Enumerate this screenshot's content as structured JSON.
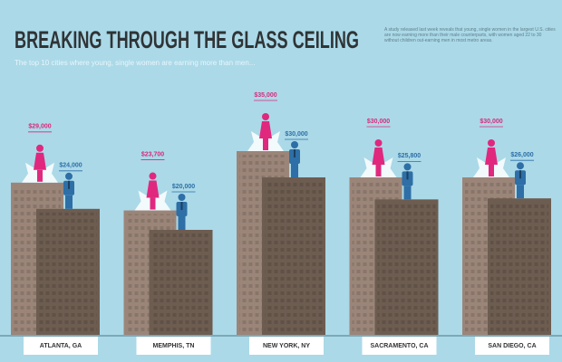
{
  "chart_data": {
    "type": "bar",
    "title": "BREAKING THROUGH THE GLASS CEILING",
    "subtitle": "The top 10 cities where young, single women are earning more than men...",
    "note": "A study released last week reveals that young, single women in the largest U.S. cities are now earning more than their male counterparts, with women aged 22 to 30 without children out-earning men in most metro areas.",
    "categories": [
      "ATLANTA, GA",
      "MEMPHIS, TN",
      "NEW YORK, NY",
      "SACRAMENTO, CA",
      "SAN DIEGO, CA"
    ],
    "series": [
      {
        "color": "#9b8579",
        "values": [
          29000,
          23700,
          35000,
          30000,
          30000
        ],
        "value_labels": [
          "$29,000",
          "$23,700",
          "$35,000",
          "$30,000",
          "$30,000"
        ]
      },
      {
        "color": "#6d5c50",
        "values": [
          24000,
          20000,
          30000,
          25800,
          26000
        ],
        "value_labels": [
          "$24,000",
          "$20,000",
          "$30,000",
          "$25,800",
          "$26,000"
        ]
      }
    ]
  }
}
